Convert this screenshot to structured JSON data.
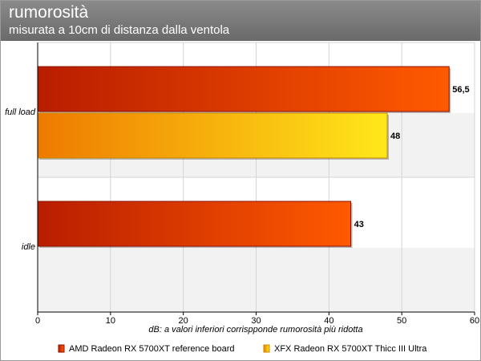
{
  "header": {
    "title": "rumorosità",
    "subtitle": "misurata a 10cm di distanza dalla ventola"
  },
  "colors": {
    "header_bg": "#767676",
    "band_bg": "#f2f2f2",
    "grid": "#d4d4d4"
  },
  "chart_data": {
    "type": "bar",
    "orientation": "horizontal",
    "title": "rumorosità",
    "subtitle": "misurata a 10cm di distanza dalla ventola",
    "xlabel": "dB: a valori inferiori corrispponde rumorosità più ridotta",
    "categories": [
      "full load",
      "idle"
    ],
    "xlim": [
      0,
      60
    ],
    "xticks": [
      0,
      10,
      20,
      30,
      40,
      50,
      60
    ],
    "grid": true,
    "legend_position": "bottom",
    "series": [
      {
        "name": "AMD Radeon RX 5700XT reference board",
        "values": [
          56.5,
          43
        ],
        "value_labels": [
          "56,5",
          "43"
        ],
        "color_start": "#b81d00",
        "color_end": "#ff5a00",
        "stroke": "#8a1000"
      },
      {
        "name": "XFX Radeon RX 5700XT Thicc III Ultra",
        "values": [
          48,
          null
        ],
        "value_labels": [
          "48",
          ""
        ],
        "color_start": "#ee7a00",
        "color_end": "#ffe81a",
        "stroke": "#c88a00"
      }
    ]
  }
}
